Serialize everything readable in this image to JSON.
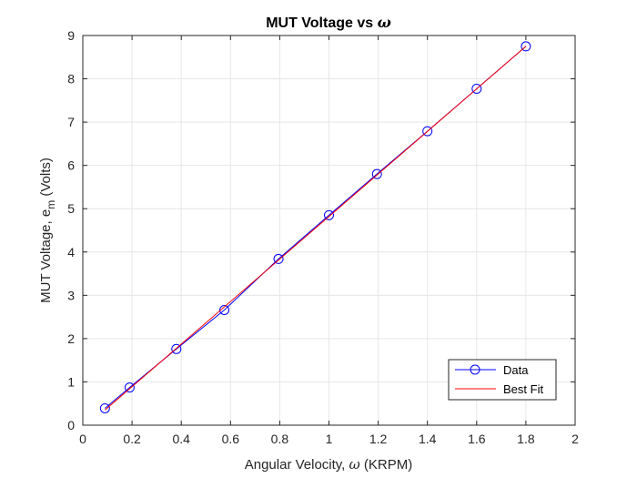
{
  "chart_data": {
    "type": "line",
    "title": "MUT Voltage vs ω",
    "xlabel": "Angular Velocity, ω (KRPM)",
    "ylabel": "MUT Voltage, e_m (Volts)",
    "xlim": [
      0,
      2
    ],
    "ylim": [
      0,
      9
    ],
    "x_ticks": [
      "0",
      "0.2",
      "0.4",
      "0.6",
      "0.8",
      "1",
      "1.2",
      "1.4",
      "1.6",
      "1.8",
      "2"
    ],
    "y_ticks": [
      "0",
      "1",
      "2",
      "3",
      "4",
      "5",
      "6",
      "7",
      "8",
      "9"
    ],
    "grid": true,
    "legend_position": "bottom-right",
    "series": [
      {
        "name": "Data",
        "color": "#0000ff",
        "marker": "circle",
        "line": true,
        "x": [
          0.09,
          0.19,
          0.38,
          0.575,
          0.795,
          1.0,
          1.195,
          1.4,
          1.6,
          1.8
        ],
        "y": [
          0.39,
          0.87,
          1.76,
          2.66,
          3.84,
          4.85,
          5.8,
          6.79,
          7.77,
          8.75
        ]
      },
      {
        "name": "Best Fit",
        "color": "#ff0000",
        "marker": "none",
        "line": true,
        "x": [
          0.09,
          1.8
        ],
        "y": [
          0.35,
          8.75
        ]
      }
    ]
  },
  "labels": {
    "title_main": "MUT Voltage vs ",
    "title_symbol": "ω",
    "xlabel_pre": "Angular Velocity, ",
    "xlabel_symbol": "ω",
    "xlabel_post": " (KRPM)",
    "ylabel_pre": "MUT Voltage, e",
    "ylabel_sub": "m",
    "ylabel_post": " (Volts)"
  }
}
